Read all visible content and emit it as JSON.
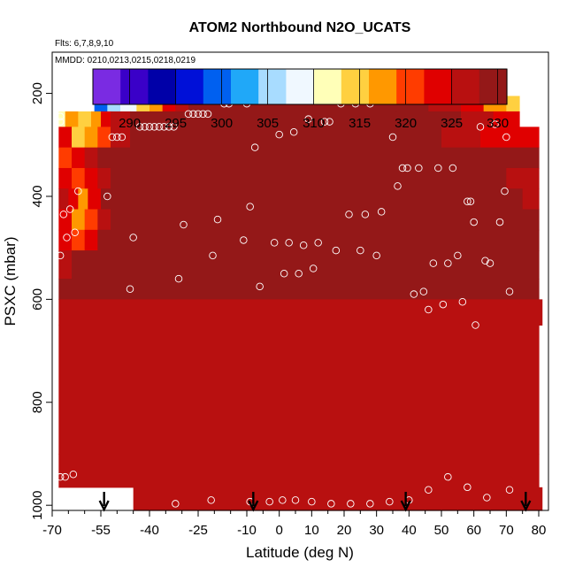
{
  "chart_data": {
    "type": "heatmap",
    "title": "ATOM2 Northbound N2O_UCATS",
    "flights_label": "Flts: 6,7,8,9,10",
    "dates_label": "MMDD: 0210,0213,0215,0218,0219",
    "xlabel": "Latitude (deg N)",
    "ylabel": "PSXC (mbar)",
    "xlim": [
      -70,
      83
    ],
    "ylim": [
      1010,
      120
    ],
    "x_ticks": [
      -70,
      -55,
      -40,
      -25,
      -10,
      0,
      10,
      20,
      30,
      40,
      50,
      60,
      70,
      80
    ],
    "x_tick_labels": [
      "-70",
      "-55",
      "-40",
      "-25",
      "-10",
      "0",
      "10",
      "20",
      "30",
      "40",
      "50",
      "60",
      "70",
      "80"
    ],
    "x_minor_ticks": [
      -65,
      -60,
      -50,
      -45,
      -35,
      -30,
      -20,
      -15,
      -5,
      5,
      15,
      25,
      35,
      45,
      55,
      65,
      75
    ],
    "y_ticks": [
      200,
      400,
      600,
      800,
      1000
    ],
    "y_tick_labels": [
      "200",
      "400",
      "600",
      "800",
      "1000"
    ],
    "colorbar": {
      "range": [
        286,
        331
      ],
      "ticks": [
        290,
        295,
        300,
        305,
        310,
        315,
        320,
        325,
        330
      ],
      "tick_labels": [
        "290",
        "295",
        "300",
        "305",
        "310",
        "315",
        "320",
        "325",
        "330"
      ],
      "colors": [
        "#7a2be2",
        "#3a00c8",
        "#0000a8",
        "#0010d8",
        "#0060f0",
        "#20a8f8",
        "#a8dcff",
        "#f0f8ff",
        "#ffffb8",
        "#ffd040",
        "#ff9800",
        "#ff3c00",
        "#e00000",
        "#b81010",
        "#941818"
      ]
    },
    "profile_markers": [
      -54,
      -8,
      39,
      76
    ],
    "cell_rows": [
      {
        "p": [
          165,
          205
        ],
        "cells": [
          [
            -57,
            -53,
            303
          ],
          [
            -53,
            -49,
            306
          ],
          [
            -49,
            -44,
            310
          ],
          [
            -44,
            -40,
            314
          ],
          [
            -40,
            -36,
            318
          ],
          [
            -36,
            -32,
            322
          ],
          [
            -32,
            -28,
            325
          ],
          [
            -28,
            -22,
            328
          ],
          [
            -22,
            36,
            329
          ]
        ]
      },
      {
        "p": [
          205,
          235
        ],
        "cells": [
          [
            -57,
            -53,
            300
          ],
          [
            -53,
            -49,
            304
          ],
          [
            -49,
            -44,
            308
          ],
          [
            -44,
            -40,
            313
          ],
          [
            -40,
            -36,
            317
          ],
          [
            -36,
            -32,
            322
          ],
          [
            -32,
            -28,
            325
          ],
          [
            -28,
            36,
            329
          ],
          [
            36,
            46,
            328
          ],
          [
            46,
            56,
            326
          ],
          [
            56,
            63,
            322
          ],
          [
            63,
            70,
            318
          ],
          [
            70,
            74,
            314
          ]
        ]
      },
      {
        "p": [
          235,
          265
        ],
        "cells": [
          [
            -68,
            -66,
            312
          ],
          [
            -66,
            -62,
            318
          ],
          [
            -62,
            -58,
            314
          ],
          [
            -58,
            -55,
            316
          ],
          [
            -55,
            -52,
            322
          ],
          [
            -52,
            -46,
            326
          ],
          [
            -46,
            36,
            329
          ],
          [
            36,
            56,
            328
          ],
          [
            56,
            66,
            326
          ],
          [
            66,
            74,
            323
          ]
        ]
      },
      {
        "p": [
          265,
          305
        ],
        "cells": [
          [
            -68,
            -64,
            322
          ],
          [
            -64,
            -60,
            314
          ],
          [
            -60,
            -56,
            318
          ],
          [
            -56,
            -52,
            321
          ],
          [
            -52,
            -46,
            325
          ],
          [
            -46,
            36,
            329
          ],
          [
            36,
            50,
            328
          ],
          [
            50,
            62,
            326
          ],
          [
            62,
            70,
            324
          ],
          [
            70,
            80,
            322
          ]
        ]
      },
      {
        "p": [
          305,
          345
        ],
        "cells": [
          [
            -68,
            -64,
            320
          ],
          [
            -64,
            -60,
            324
          ],
          [
            -60,
            -56,
            326
          ],
          [
            -56,
            -52,
            328
          ],
          [
            -52,
            80,
            328
          ]
        ]
      },
      {
        "p": [
          345,
          385
        ],
        "cells": [
          [
            -68,
            -64,
            322
          ],
          [
            -64,
            -60,
            320
          ],
          [
            -60,
            -56,
            324
          ],
          [
            -56,
            -52,
            327
          ],
          [
            -52,
            70,
            328
          ],
          [
            70,
            80,
            326
          ]
        ]
      },
      {
        "p": [
          385,
          425
        ],
        "cells": [
          [
            -68,
            -65,
            326
          ],
          [
            -65,
            -62,
            322
          ],
          [
            -62,
            -59,
            318
          ],
          [
            -59,
            -55,
            324
          ],
          [
            -55,
            75,
            328
          ],
          [
            75,
            80,
            325
          ]
        ]
      },
      {
        "p": [
          425,
          465
        ],
        "cells": [
          [
            -68,
            -64,
            322
          ],
          [
            -64,
            -60,
            318
          ],
          [
            -60,
            -56,
            320
          ],
          [
            -56,
            -52,
            325
          ],
          [
            -52,
            80,
            328
          ]
        ]
      },
      {
        "p": [
          465,
          505
        ],
        "cells": [
          [
            -68,
            -64,
            324
          ],
          [
            -64,
            -60,
            321
          ],
          [
            -60,
            -56,
            324
          ],
          [
            -56,
            80,
            328
          ]
        ]
      },
      {
        "p": [
          505,
          560
        ],
        "cells": [
          [
            -68,
            -64,
            326
          ],
          [
            -64,
            80,
            328
          ]
        ]
      },
      {
        "p": [
          560,
          600
        ],
        "cells": [
          [
            -68,
            80,
            328
          ]
        ]
      },
      {
        "p": [
          600,
          650
        ],
        "cells": [
          [
            -68,
            81,
            327
          ]
        ]
      },
      {
        "p": [
          650,
          900
        ],
        "cells": [
          [
            -68,
            80,
            327
          ]
        ]
      },
      {
        "p": [
          900,
          965
        ],
        "cells": [
          [
            -68,
            80,
            327
          ]
        ]
      },
      {
        "p": [
          965,
          1010
        ],
        "cells": [
          [
            -45,
            81,
            327
          ]
        ]
      }
    ],
    "observations": [
      {
        "x": -67.5,
        "y": 245
      },
      {
        "x": -67.5,
        "y": 255
      },
      {
        "x": -67.5,
        "y": 515
      },
      {
        "x": -66.5,
        "y": 435
      },
      {
        "x": -65.5,
        "y": 480
      },
      {
        "x": -64.5,
        "y": 425
      },
      {
        "x": -63,
        "y": 470
      },
      {
        "x": -62,
        "y": 390
      },
      {
        "x": -57.5,
        "y": 200
      },
      {
        "x": -56,
        "y": 190
      },
      {
        "x": -54.5,
        "y": 185
      },
      {
        "x": -53,
        "y": 400
      },
      {
        "x": -51.5,
        "y": 285
      },
      {
        "x": -50,
        "y": 285
      },
      {
        "x": -48.5,
        "y": 285
      },
      {
        "x": -46,
        "y": 580
      },
      {
        "x": -45,
        "y": 480
      },
      {
        "x": -43,
        "y": 265
      },
      {
        "x": -41.5,
        "y": 265
      },
      {
        "x": -40,
        "y": 265
      },
      {
        "x": -38.5,
        "y": 265
      },
      {
        "x": -37,
        "y": 265
      },
      {
        "x": -35.5,
        "y": 265
      },
      {
        "x": -34,
        "y": 265
      },
      {
        "x": -32.5,
        "y": 265
      },
      {
        "x": -31,
        "y": 560
      },
      {
        "x": -29.5,
        "y": 455
      },
      {
        "x": -28,
        "y": 240
      },
      {
        "x": -26.5,
        "y": 240
      },
      {
        "x": -25,
        "y": 240
      },
      {
        "x": -23.5,
        "y": 240
      },
      {
        "x": -22,
        "y": 240
      },
      {
        "x": -20.5,
        "y": 515
      },
      {
        "x": -19,
        "y": 445
      },
      {
        "x": -17,
        "y": 220
      },
      {
        "x": -15.5,
        "y": 220
      },
      {
        "x": -13,
        "y": 210
      },
      {
        "x": -11,
        "y": 485
      },
      {
        "x": -10,
        "y": 220
      },
      {
        "x": -9,
        "y": 420
      },
      {
        "x": -7.5,
        "y": 305
      },
      {
        "x": -6,
        "y": 575
      },
      {
        "x": -1.5,
        "y": 490
      },
      {
        "x": 0,
        "y": 280
      },
      {
        "x": 1.5,
        "y": 550
      },
      {
        "x": 3,
        "y": 490
      },
      {
        "x": 4.5,
        "y": 275
      },
      {
        "x": 6,
        "y": 550
      },
      {
        "x": 7.5,
        "y": 495
      },
      {
        "x": 9,
        "y": 250
      },
      {
        "x": 10.5,
        "y": 540
      },
      {
        "x": 12,
        "y": 490
      },
      {
        "x": 14,
        "y": 255
      },
      {
        "x": 15.5,
        "y": 255
      },
      {
        "x": 17.5,
        "y": 505
      },
      {
        "x": 19,
        "y": 220
      },
      {
        "x": 21.5,
        "y": 435
      },
      {
        "x": 23.5,
        "y": 220
      },
      {
        "x": 25,
        "y": 505
      },
      {
        "x": 26.5,
        "y": 435
      },
      {
        "x": 28,
        "y": 220
      },
      {
        "x": 30,
        "y": 515
      },
      {
        "x": 31.5,
        "y": 430
      },
      {
        "x": 33,
        "y": 210
      },
      {
        "x": 35,
        "y": 285
      },
      {
        "x": 36.5,
        "y": 380
      },
      {
        "x": 38,
        "y": 345
      },
      {
        "x": 39.5,
        "y": 345
      },
      {
        "x": 41.5,
        "y": 590
      },
      {
        "x": 43,
        "y": 345
      },
      {
        "x": 44.5,
        "y": 585
      },
      {
        "x": 46,
        "y": 620
      },
      {
        "x": 47.5,
        "y": 530
      },
      {
        "x": 49,
        "y": 345
      },
      {
        "x": 50.5,
        "y": 610
      },
      {
        "x": 52,
        "y": 530
      },
      {
        "x": 53.5,
        "y": 345
      },
      {
        "x": 55,
        "y": 515
      },
      {
        "x": 56.5,
        "y": 605
      },
      {
        "x": 58,
        "y": 410
      },
      {
        "x": 59,
        "y": 410
      },
      {
        "x": 60,
        "y": 450
      },
      {
        "x": 60.5,
        "y": 650
      },
      {
        "x": 62,
        "y": 265
      },
      {
        "x": 63.5,
        "y": 525
      },
      {
        "x": 65,
        "y": 530
      },
      {
        "x": 66.5,
        "y": 260
      },
      {
        "x": 68,
        "y": 450
      },
      {
        "x": 69.5,
        "y": 390
      },
      {
        "x": 70,
        "y": 285
      },
      {
        "x": 71,
        "y": 585
      },
      {
        "x": -67.5,
        "y": 945
      },
      {
        "x": -66,
        "y": 945
      },
      {
        "x": -63.5,
        "y": 940
      },
      {
        "x": -47,
        "y": 997
      },
      {
        "x": -32,
        "y": 997
      },
      {
        "x": -21,
        "y": 990
      },
      {
        "x": -9,
        "y": 993
      },
      {
        "x": -3,
        "y": 993
      },
      {
        "x": 1,
        "y": 990
      },
      {
        "x": 5,
        "y": 990
      },
      {
        "x": 10,
        "y": 993
      },
      {
        "x": 16,
        "y": 997
      },
      {
        "x": 22,
        "y": 997
      },
      {
        "x": 28,
        "y": 997
      },
      {
        "x": 34,
        "y": 993
      },
      {
        "x": 40,
        "y": 990
      },
      {
        "x": 46,
        "y": 970
      },
      {
        "x": 52,
        "y": 945
      },
      {
        "x": 58,
        "y": 965
      },
      {
        "x": 64,
        "y": 985
      },
      {
        "x": 71,
        "y": 970
      }
    ]
  }
}
